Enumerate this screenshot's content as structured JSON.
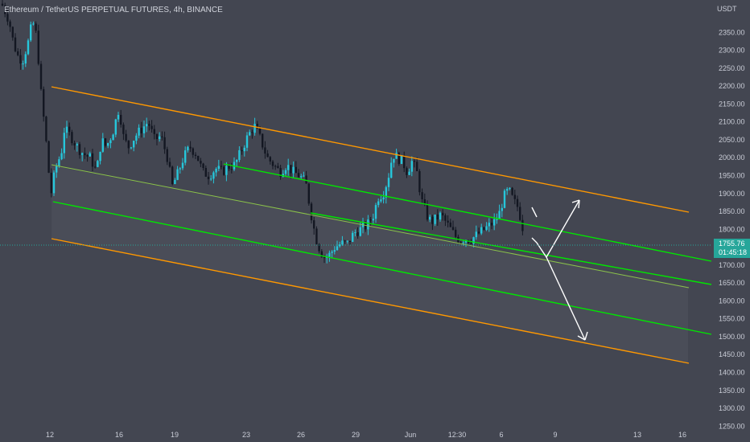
{
  "chart_data": {
    "type": "candlestick",
    "title": "Ethereum / TetherUS PERPETUAL FUTURES, 4h, BINANCE",
    "currency": "USDT",
    "ylim": [
      1230,
      2450
    ],
    "x_tick_labels": [
      "12",
      "16",
      "19",
      "23",
      "26",
      "29",
      "Jun",
      "12:30",
      "6",
      "9",
      "13",
      "16"
    ],
    "y_tick_labels": [
      "2350.00",
      "2300.00",
      "2250.00",
      "2200.00",
      "2150.00",
      "2100.00",
      "2050.00",
      "2000.00",
      "1950.00",
      "1900.00",
      "1850.00",
      "1800.00",
      "1750.00",
      "1700.00",
      "1650.00",
      "1600.00",
      "1550.00",
      "1500.00",
      "1450.00",
      "1400.00",
      "1350.00",
      "1300.00",
      "1250.00"
    ],
    "y_ticks": [
      2350,
      2300,
      2250,
      2200,
      2150,
      2100,
      2050,
      2000,
      1950,
      1900,
      1850,
      1800,
      1750,
      1700,
      1650,
      1600,
      1550,
      1500,
      1450,
      1400,
      1350,
      1300,
      1250
    ],
    "last_price": "1755.76",
    "last_price_value": 1755.76,
    "countdown": "01:45:18",
    "grid": false,
    "colors": {
      "background": "#434651",
      "up": "#26c6da",
      "down": "#131722",
      "channel_outer": "#ff9800",
      "channel_inner": "#00e600",
      "median": "#8bc34a",
      "badge": "#26a69a",
      "arrows": "#ffffff"
    }
  }
}
